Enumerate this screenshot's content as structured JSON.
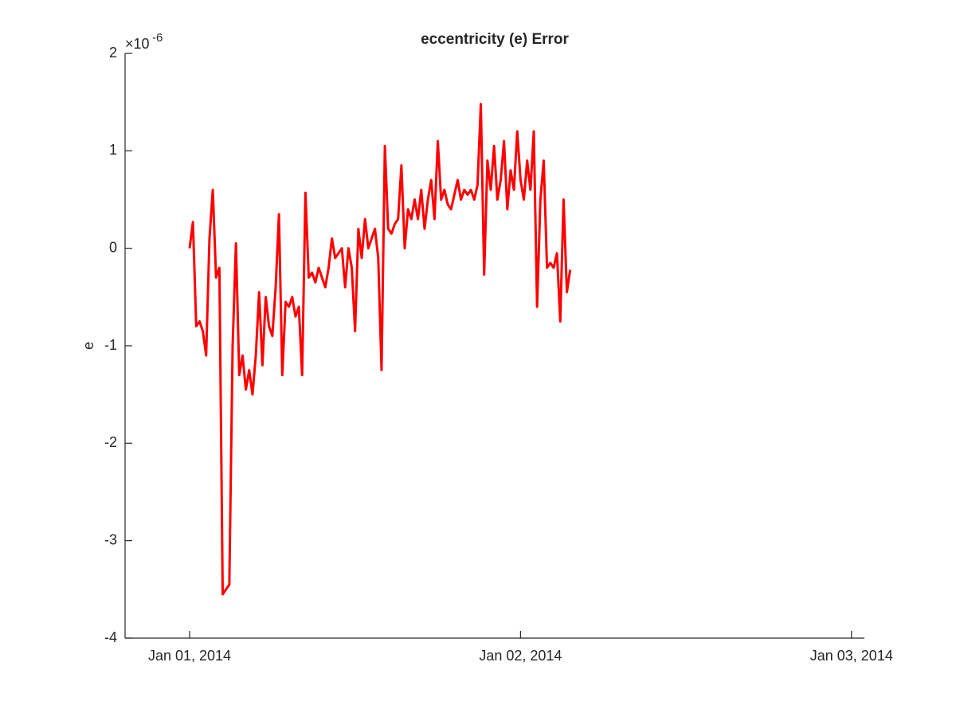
{
  "chart_data": {
    "type": "line",
    "title": "eccentricity (e) Error",
    "y_label": "e",
    "y_multiplier": {
      "base": "×10",
      "exponent": "-6"
    },
    "x": [
      0,
      0.01,
      0.02,
      0.03,
      0.04,
      0.05,
      0.06,
      0.07,
      0.08,
      0.09,
      0.1,
      0.11,
      0.12,
      0.13,
      0.14,
      0.15,
      0.16,
      0.17,
      0.18,
      0.19,
      0.2,
      0.21,
      0.22,
      0.23,
      0.24,
      0.25,
      0.26,
      0.27,
      0.28,
      0.29,
      0.3,
      0.31,
      0.32,
      0.33,
      0.34,
      0.35,
      0.36,
      0.37,
      0.38,
      0.39,
      0.4,
      0.41,
      0.42,
      0.43,
      0.44,
      0.45,
      0.46,
      0.47,
      0.48,
      0.49,
      0.5,
      0.51,
      0.52,
      0.53,
      0.54,
      0.55,
      0.56,
      0.57,
      0.58,
      0.59,
      0.6,
      0.61,
      0.62,
      0.63,
      0.64,
      0.65,
      0.66,
      0.67,
      0.68,
      0.69,
      0.7,
      0.71,
      0.72,
      0.73,
      0.74,
      0.75,
      0.76,
      0.77,
      0.78,
      0.79,
      0.8,
      0.81,
      0.82,
      0.83,
      0.84,
      0.85,
      0.86,
      0.87,
      0.88,
      0.89,
      0.9,
      0.91,
      0.92,
      0.93,
      0.94,
      0.95,
      0.96,
      0.97,
      0.98,
      0.99,
      1,
      1.01,
      1.02,
      1.03,
      1.04,
      1.05,
      1.06,
      1.07,
      1.08,
      1.09,
      1.1,
      1.11,
      1.12,
      1.13,
      1.14,
      1.15
    ],
    "series": [
      {
        "color": "#ff0000",
        "values": [
          0,
          0.27,
          -0.8,
          -0.75,
          -0.85,
          -1.1,
          0.1,
          0.6,
          -0.3,
          -0.2,
          -3.55,
          -3.5,
          -3.45,
          -1,
          0.05,
          -1.3,
          -1.1,
          -1.45,
          -1.25,
          -1.5,
          -1.1,
          -0.45,
          -1.2,
          -0.5,
          -0.8,
          -0.9,
          -0.4,
          0.35,
          -1.3,
          -0.55,
          -0.6,
          -0.5,
          -0.7,
          -0.6,
          -1.3,
          0.57,
          -0.3,
          -0.25,
          -0.35,
          -0.2,
          -0.3,
          -0.4,
          -0.2,
          0.1,
          -0.1,
          -0.05,
          0,
          -0.4,
          0,
          -0.2,
          -0.85,
          0.2,
          -0.1,
          0.3,
          0,
          0.1,
          0.2,
          -0.1,
          -1.25,
          1.05,
          0.2,
          0.15,
          0.25,
          0.3,
          0.85,
          0,
          0.4,
          0.3,
          0.5,
          0.3,
          0.6,
          0.2,
          0.5,
          0.7,
          0.3,
          1.1,
          0.5,
          0.6,
          0.45,
          0.4,
          0.55,
          0.7,
          0.5,
          0.6,
          0.55,
          0.6,
          0.5,
          0.65,
          1.48,
          -0.27,
          0.9,
          0.6,
          1.05,
          0.5,
          0.7,
          1.1,
          0.4,
          0.8,
          0.6,
          1.2,
          0.7,
          0.5,
          0.9,
          0.6,
          1.2,
          -0.6,
          0.5,
          0.9,
          -0.2,
          -0.15,
          -0.2,
          -0.05,
          -0.75,
          0.5,
          -0.45,
          -0.22
        ]
      }
    ],
    "xlim": [
      -0.195,
      2.039
    ],
    "xticks": [
      {
        "value": 0,
        "label": "Jan 01, 2014"
      },
      {
        "value": 1,
        "label": "Jan 02, 2014"
      },
      {
        "value": 2,
        "label": "Jan 03, 2014"
      }
    ],
    "ylim": [
      -4,
      2
    ],
    "yticks": [
      -4,
      -3,
      -2,
      -1,
      0,
      1,
      2
    ],
    "grid": false
  }
}
